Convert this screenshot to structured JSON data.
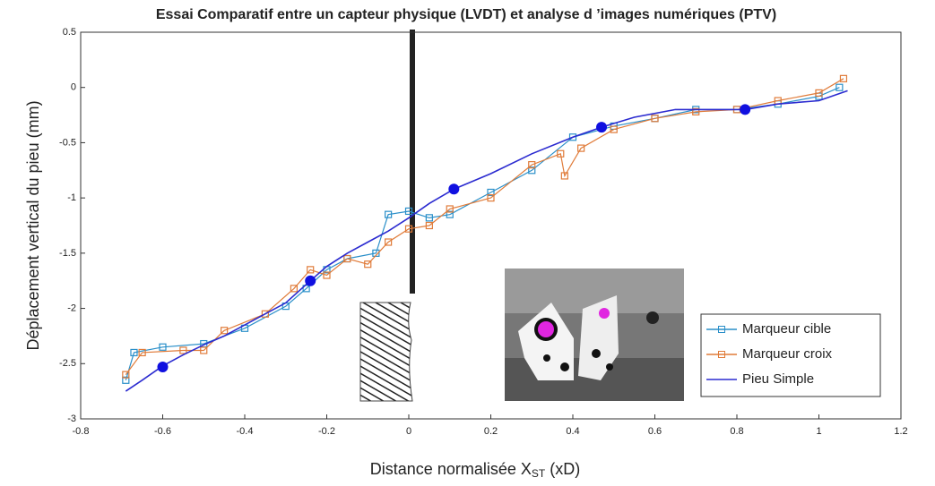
{
  "chart_data": {
    "type": "line",
    "title": "Essai Comparatif entre un capteur physique (LVDT) et analyse d ’images numériques (PTV)",
    "ylabel": "Déplacement vertical du pieu (mm)",
    "xlabel": [
      "Distance normalisée X",
      "ST",
      " (xD)"
    ],
    "xlim": [
      -0.8,
      1.2
    ],
    "ylim": [
      -3,
      0.5
    ],
    "xticks": [
      -0.8,
      -0.6,
      -0.4,
      -0.2,
      0,
      0.2,
      0.4,
      0.6,
      0.8,
      1,
      1.2
    ],
    "yticks": [
      0.5,
      0,
      -0.5,
      -1,
      -1.5,
      -2,
      -2.5,
      -3
    ],
    "legend": "lower right",
    "series": [
      {
        "name": "Marqueur cible",
        "color": "#2a8fc9",
        "marker": "square",
        "x": [
          -0.69,
          -0.67,
          -0.6,
          -0.5,
          -0.4,
          -0.3,
          -0.25,
          -0.2,
          -0.15,
          -0.08,
          -0.05,
          0,
          0.05,
          0.1,
          0.2,
          0.3,
          0.4,
          0.5,
          0.6,
          0.7,
          0.8,
          0.9,
          1.0,
          1.05
        ],
        "values": [
          -2.65,
          -2.4,
          -2.35,
          -2.32,
          -2.18,
          -1.98,
          -1.82,
          -1.65,
          -1.55,
          -1.5,
          -1.15,
          -1.12,
          -1.18,
          -1.15,
          -0.95,
          -0.75,
          -0.45,
          -0.35,
          -0.28,
          -0.2,
          -0.2,
          -0.15,
          -0.08,
          0.0
        ]
      },
      {
        "name": "Marqueur croix",
        "color": "#e07b39",
        "marker": "square",
        "x": [
          -0.69,
          -0.65,
          -0.55,
          -0.5,
          -0.45,
          -0.35,
          -0.28,
          -0.24,
          -0.2,
          -0.15,
          -0.1,
          -0.05,
          0,
          0.05,
          0.1,
          0.2,
          0.3,
          0.37,
          0.38,
          0.42,
          0.5,
          0.6,
          0.7,
          0.8,
          0.9,
          1.0,
          1.06
        ],
        "values": [
          -2.6,
          -2.4,
          -2.38,
          -2.38,
          -2.2,
          -2.05,
          -1.82,
          -1.65,
          -1.7,
          -1.55,
          -1.6,
          -1.4,
          -1.28,
          -1.25,
          -1.1,
          -1.0,
          -0.7,
          -0.6,
          -0.8,
          -0.55,
          -0.38,
          -0.28,
          -0.22,
          -0.2,
          -0.12,
          -0.05,
          0.08
        ]
      },
      {
        "name": "Pieu Simple",
        "color": "#2b2bd0",
        "marker": "none",
        "x": [
          -0.69,
          -0.65,
          -0.6,
          -0.55,
          -0.5,
          -0.45,
          -0.4,
          -0.35,
          -0.3,
          -0.24,
          -0.2,
          -0.15,
          -0.1,
          -0.05,
          0,
          0.05,
          0.11,
          0.2,
          0.3,
          0.4,
          0.47,
          0.55,
          0.65,
          0.75,
          0.82,
          0.9,
          1.0,
          1.07
        ],
        "values": [
          -2.75,
          -2.65,
          -2.52,
          -2.42,
          -2.33,
          -2.25,
          -2.15,
          -2.05,
          -1.95,
          -1.75,
          -1.62,
          -1.5,
          -1.4,
          -1.3,
          -1.18,
          -1.05,
          -0.92,
          -0.78,
          -0.6,
          -0.45,
          -0.36,
          -0.27,
          -0.2,
          -0.2,
          -0.2,
          -0.15,
          -0.12,
          -0.03
        ]
      }
    ],
    "points": {
      "color": "#1010e0",
      "x": [
        -0.6,
        -0.24,
        0.11,
        0.47,
        0.82
      ],
      "values": [
        -2.53,
        -1.75,
        -0.92,
        -0.36,
        -0.2
      ]
    }
  }
}
